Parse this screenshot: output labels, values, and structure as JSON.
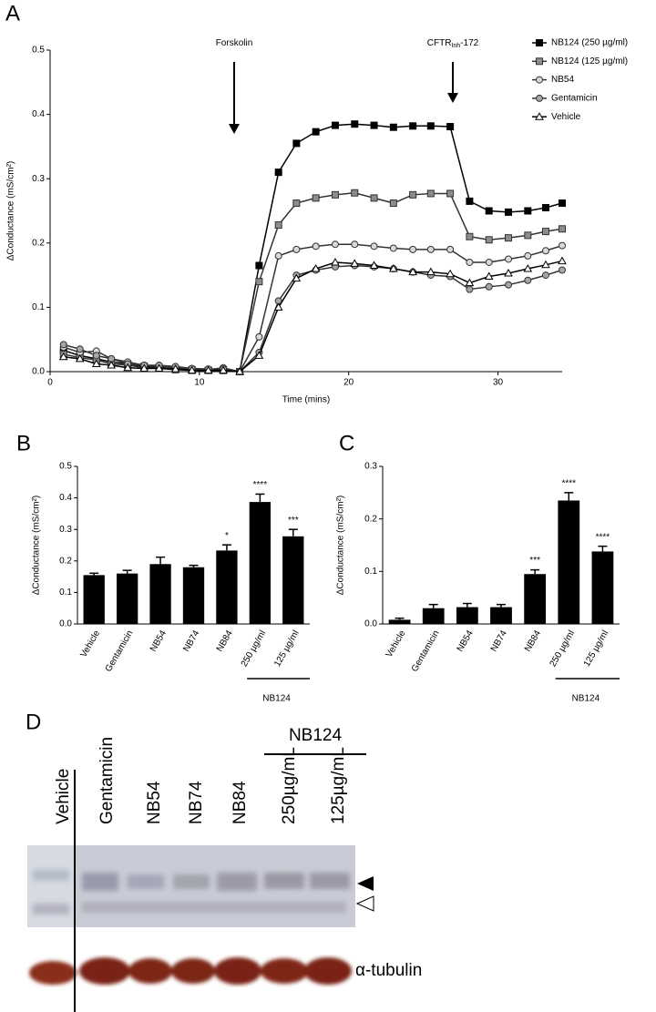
{
  "panel_labels": [
    "A",
    "B",
    "C",
    "D"
  ],
  "chart_data": [
    {
      "type": "line",
      "x_label": "Time (mins)",
      "y_label": "ΔConductance (mS/cm²)",
      "annotations": [
        {
          "parts": [
            "Forskolin"
          ]
        },
        {
          "parts": [
            "CFTR",
            "Inh",
            "-172"
          ]
        }
      ],
      "xlim": [
        0,
        34.3
      ],
      "xticks": [
        0,
        10,
        20,
        30
      ],
      "ylim": [
        0,
        0.5
      ],
      "yticks": [
        {
          "value": 0,
          "label": "0.0"
        },
        0.1,
        0.2,
        0.3,
        0.4,
        0.5
      ],
      "legend": "upper right",
      "x": [
        0.9,
        2.0,
        3.1,
        4.1,
        5.2,
        6.3,
        7.3,
        8.4,
        9.5,
        10.6,
        11.6,
        12.7,
        14.0,
        15.3,
        16.5,
        17.8,
        19.1,
        20.4,
        21.7,
        23.0,
        24.3,
        25.5,
        26.8,
        28.1,
        29.4,
        30.7,
        32.0,
        33.2,
        34.3
      ],
      "series": [
        {
          "name": "NB124 (250 µg/ml)",
          "color": "#000000",
          "marker": "square",
          "fill": "#000000",
          "values": [
            0.033,
            0.025,
            0.02,
            0.015,
            0.012,
            0.008,
            0.006,
            0.004,
            0.003,
            0.002,
            0.002,
            0.0,
            0.165,
            0.31,
            0.355,
            0.373,
            0.383,
            0.385,
            0.383,
            0.38,
            0.382,
            0.382,
            0.381,
            0.265,
            0.25,
            0.248,
            0.25,
            0.255,
            0.262
          ]
        },
        {
          "name": "NB124 (125 µg/ml)",
          "color": "#333333",
          "marker": "square",
          "fill": "#8c8c8c",
          "values": [
            0.027,
            0.022,
            0.018,
            0.012,
            0.01,
            0.006,
            0.005,
            0.003,
            0.002,
            0.002,
            0.003,
            0.0,
            0.14,
            0.228,
            0.262,
            0.27,
            0.275,
            0.278,
            0.27,
            0.262,
            0.275,
            0.277,
            0.277,
            0.21,
            0.205,
            0.208,
            0.212,
            0.218,
            0.222
          ]
        },
        {
          "name": "NB54",
          "color": "#333333",
          "marker": "circle",
          "fill": "#d9d9d9",
          "values": [
            0.038,
            0.03,
            0.032,
            0.02,
            0.015,
            0.01,
            0.008,
            0.006,
            0.004,
            0.003,
            0.006,
            0.0,
            0.054,
            0.18,
            0.19,
            0.195,
            0.198,
            0.198,
            0.195,
            0.192,
            0.19,
            0.19,
            0.19,
            0.17,
            0.17,
            0.175,
            0.18,
            0.188,
            0.196
          ]
        },
        {
          "name": "Gentamicin",
          "color": "#333333",
          "marker": "circle",
          "fill": "#a6a6a6",
          "values": [
            0.042,
            0.035,
            0.025,
            0.02,
            0.012,
            0.01,
            0.01,
            0.008,
            0.005,
            0.004,
            0.004,
            0.0,
            0.03,
            0.11,
            0.15,
            0.158,
            0.163,
            0.165,
            0.163,
            0.16,
            0.155,
            0.15,
            0.148,
            0.128,
            0.132,
            0.135,
            0.142,
            0.15,
            0.158
          ]
        },
        {
          "name": "Vehicle",
          "color": "#000000",
          "marker": "triangle",
          "fill": "#ffffff",
          "values": [
            0.023,
            0.02,
            0.012,
            0.01,
            0.006,
            0.005,
            0.005,
            0.004,
            0.002,
            0.002,
            0.002,
            0.0,
            0.025,
            0.1,
            0.145,
            0.16,
            0.17,
            0.168,
            0.165,
            0.16,
            0.155,
            0.155,
            0.152,
            0.138,
            0.148,
            0.153,
            0.16,
            0.166,
            0.172
          ]
        }
      ]
    },
    {
      "type": "bar",
      "y_label": "ΔConductance (mS/cm²)",
      "categories": [
        "Vehicle",
        "Gentamicin",
        "NB54",
        "NB74",
        "NB84",
        "250 µg/ml",
        "125 µg/ml"
      ],
      "group_label": "NB124",
      "values": [
        0.155,
        0.16,
        0.19,
        0.18,
        0.233,
        0.387,
        0.278
      ],
      "errors": [
        0.006,
        0.01,
        0.022,
        0.006,
        0.018,
        0.025,
        0.022
      ],
      "significance": [
        null,
        null,
        null,
        null,
        "*",
        "****",
        "***"
      ],
      "color": "#000000",
      "ylim": [
        0,
        0.5
      ],
      "yticks": [
        {
          "value": 0,
          "label": "0.0"
        },
        0.1,
        0.2,
        0.3,
        0.4,
        0.5
      ]
    },
    {
      "type": "bar",
      "y_label": "ΔConductance (mS/cm²)",
      "categories": [
        "Vehicle",
        "Gentamicin",
        "NB54",
        "NB74",
        "NB84",
        "250 µg/ml",
        "125 µg/ml"
      ],
      "group_label": "NB124",
      "values": [
        0.008,
        0.03,
        0.032,
        0.032,
        0.095,
        0.235,
        0.138
      ],
      "errors": [
        0.003,
        0.007,
        0.007,
        0.005,
        0.008,
        0.015,
        0.01
      ],
      "significance": [
        null,
        null,
        null,
        null,
        "***",
        "****",
        "****"
      ],
      "color": "#000000",
      "ylim": [
        0,
        0.3
      ],
      "yticks": [
        {
          "value": 0,
          "label": "0.0"
        },
        0.1,
        0.2,
        0.3
      ]
    }
  ],
  "blot": {
    "lanes": [
      "Vehicle",
      "Gentamicin",
      "NB54",
      "NB74",
      "NB84",
      "250µg/mL",
      "125µg/mL"
    ],
    "group_label": "NB124",
    "loading_control": "α-tubulin"
  }
}
